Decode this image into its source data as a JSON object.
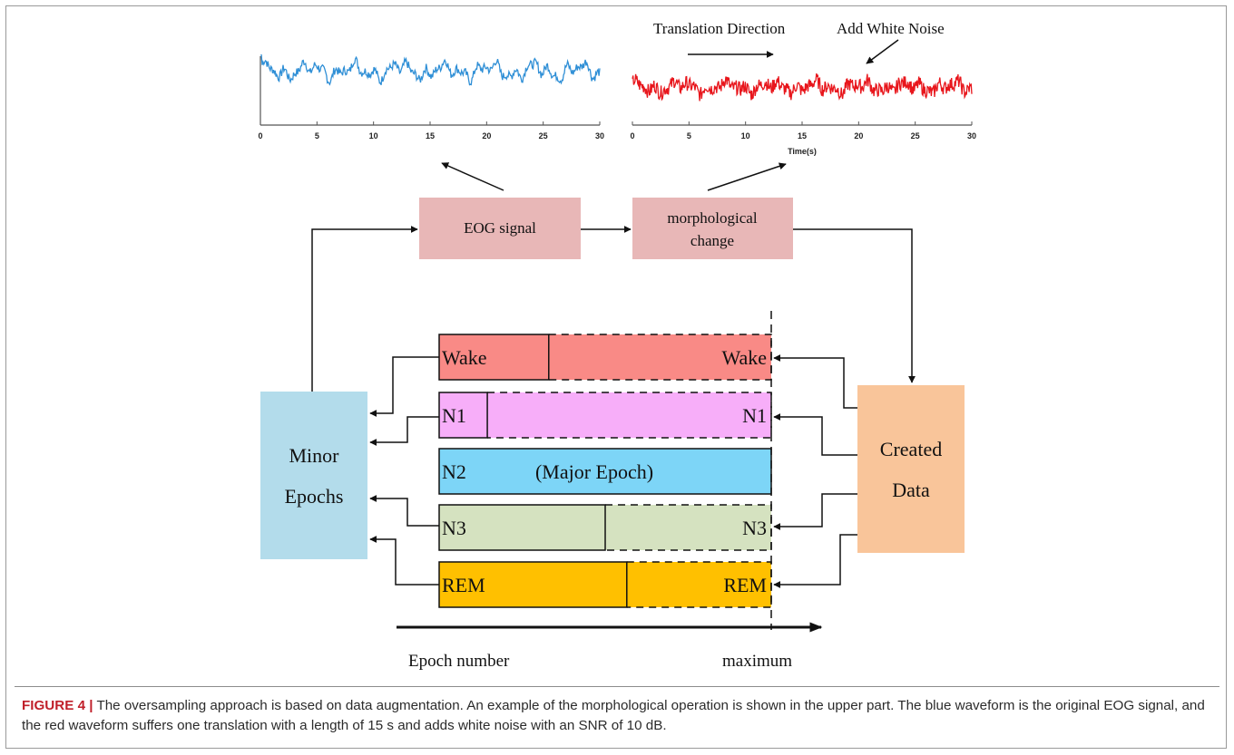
{
  "waveforms": {
    "original": {
      "color": "#2f8fd6",
      "x_ticks": [
        "0",
        "5",
        "10",
        "15",
        "20",
        "25",
        "30"
      ]
    },
    "augmented": {
      "color": "#e8161c",
      "x_ticks": [
        "0",
        "5",
        "10",
        "15",
        "20",
        "25",
        "30"
      ],
      "xlabel": "Time(s)"
    }
  },
  "annotations": {
    "translation_direction": "Translation  Direction",
    "add_white_noise": "Add White Noise"
  },
  "flow": {
    "eog_signal": "EOG signal",
    "morph_line1": "morphological",
    "morph_line2": "change",
    "minor_line1": "Minor",
    "minor_line2": "Epochs",
    "created_line1": "Created",
    "created_line2": "Data"
  },
  "stages": [
    {
      "left": "Wake",
      "right": "Wake",
      "fill": "#f98a86",
      "original_fraction": 0.33
    },
    {
      "left": "N1",
      "right": "N1",
      "fill": "#f7aef9",
      "original_fraction": 0.145
    },
    {
      "left": "N2",
      "right": "(Major Epoch)",
      "fill": "#7dd5f7",
      "original_fraction": 1.0
    },
    {
      "left": "N3",
      "right": "N3",
      "fill": "#d5e2c0",
      "original_fraction": 0.5
    },
    {
      "left": "REM",
      "right": "REM",
      "fill": "#ffc000",
      "original_fraction": 0.565
    }
  ],
  "axis": {
    "xlabel": "Epoch number",
    "max_label": "maximum"
  },
  "colors": {
    "eog_box": "#e8b7b7",
    "morph_box": "#e8b7b7",
    "minor_box": "#b3dceb",
    "created_box": "#f9c59a"
  },
  "caption": {
    "label": "FIGURE 4 |",
    "text": " The oversampling approach is based on data augmentation. An example of the morphological operation is shown in the upper part. The blue waveform is the original EOG signal, and the red waveform suffers one translation with a length of 15 s and adds white noise with an SNR of 10 dB."
  }
}
